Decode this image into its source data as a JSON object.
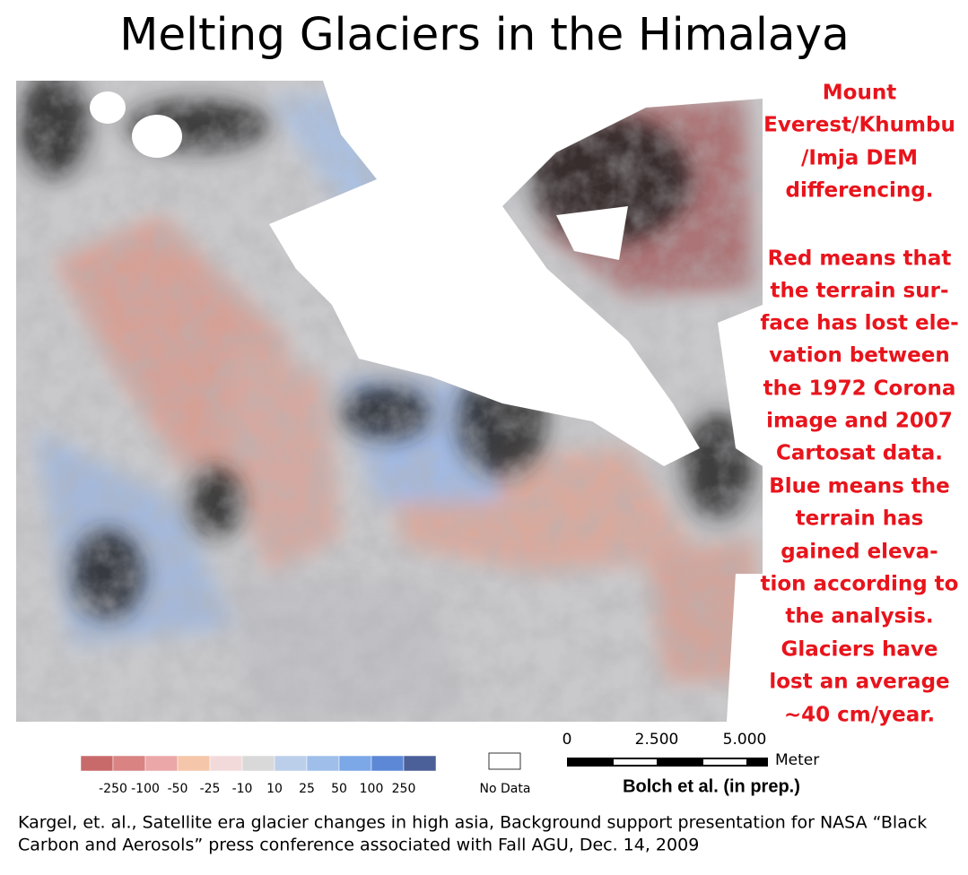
{
  "title": "Melting Glaciers in the Himalaya",
  "side_text": [
    "Mount",
    "Everest/Khumbu",
    "/Imja DEM",
    "differencing.",
    "Red means that",
    "the terrain sur-",
    "face has lost ele-",
    "vation between",
    "the 1972 Corona",
    "image and 2007",
    "Cartosat data.",
    "Blue means the",
    "terrain has",
    "gained eleva-",
    "tion according to",
    "the analysis.",
    "Glaciers have",
    "lost an average",
    "~40 cm/year."
  ],
  "legend": {
    "colors": [
      "#c96a6a",
      "#d98383",
      "#eba7a7",
      "#f5c6a9",
      "#f3dada",
      "#d9d9d9",
      "#bccfea",
      "#9fbfea",
      "#7ca8e8",
      "#5d88d6",
      "#4b5f99"
    ],
    "labels": [
      "-250",
      "-100",
      "-50",
      "-25",
      "-10",
      "10",
      "25",
      "50",
      "100",
      "250"
    ],
    "no_data": "No Data"
  },
  "scale_bar": {
    "labels": [
      "0",
      "2.500",
      "5.000"
    ],
    "unit": "Meter",
    "credit": "Bolch et al. (in prep.)"
  },
  "caption": [
    "Kargel, et. al., Satellite era glacier changes in high asia, Background support presentation for NASA “Black",
    "Carbon and Aerosols” press conference associated with Fall AGU, Dec. 14, 2009"
  ]
}
